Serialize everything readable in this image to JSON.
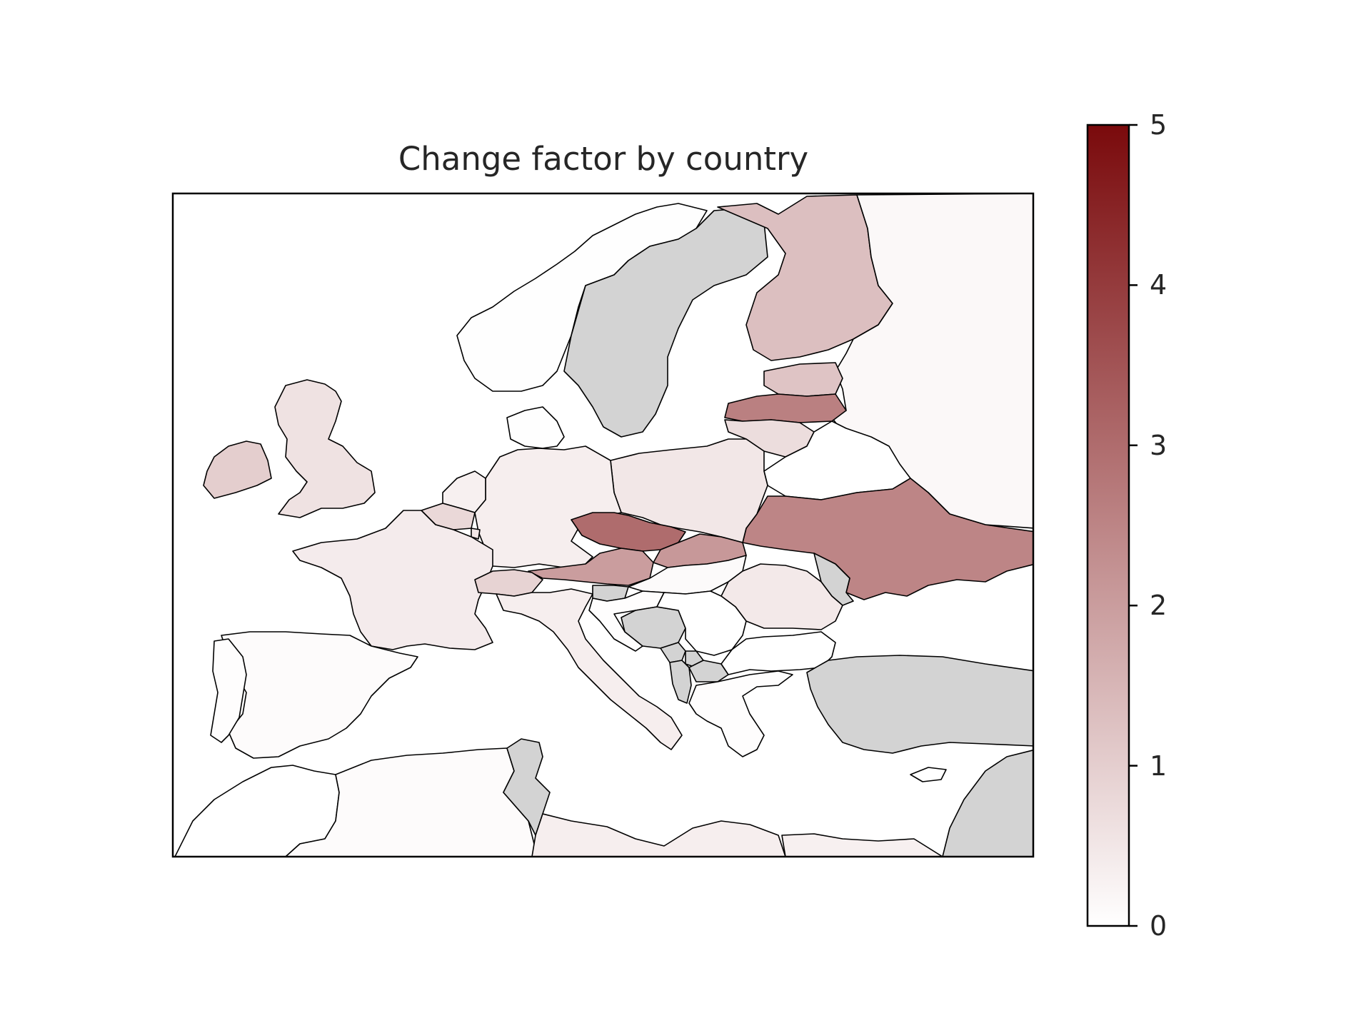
{
  "title": "Change factor by country",
  "colorbar": {
    "min": 0,
    "max": 5,
    "ticks": [
      "0",
      "1",
      "2",
      "3",
      "4",
      "5"
    ],
    "color_low": "#ffffff",
    "color_high": "#7a0a0c"
  },
  "no_data_color": "#d3d3d3",
  "countries": [
    {
      "name": "Norway",
      "value": 0.02
    },
    {
      "name": "Sweden",
      "value": null
    },
    {
      "name": "Finland",
      "value": 1.3
    },
    {
      "name": "Russia",
      "value": 0.15
    },
    {
      "name": "Estonia",
      "value": 1.2
    },
    {
      "name": "Latvia",
      "value": 2.6
    },
    {
      "name": "Lithuania",
      "value": 0.7
    },
    {
      "name": "Belarus",
      "value": 0.0
    },
    {
      "name": "Ukraine",
      "value": 2.5
    },
    {
      "name": "Moldova",
      "value": null
    },
    {
      "name": "Poland",
      "value": 0.5
    },
    {
      "name": "Germany",
      "value": 0.35
    },
    {
      "name": "Denmark",
      "value": 0.02
    },
    {
      "name": "Netherlands",
      "value": 0.3
    },
    {
      "name": "Belgium",
      "value": 0.8
    },
    {
      "name": "Luxembourg",
      "value": 0.5
    },
    {
      "name": "France",
      "value": 0.4
    },
    {
      "name": "United Kingdom",
      "value": 0.6
    },
    {
      "name": "Ireland",
      "value": 1.0
    },
    {
      "name": "Czechia",
      "value": 3.0
    },
    {
      "name": "Slovakia",
      "value": 2.1
    },
    {
      "name": "Austria",
      "value": 2.0
    },
    {
      "name": "Switzerland",
      "value": 0.9
    },
    {
      "name": "Italy",
      "value": 0.35
    },
    {
      "name": "Slovenia",
      "value": null
    },
    {
      "name": "Hungary",
      "value": 0.1
    },
    {
      "name": "Romania",
      "value": 0.45
    },
    {
      "name": "Croatia",
      "value": 0.05
    },
    {
      "name": "Bosnia and Herzegovina",
      "value": null
    },
    {
      "name": "Serbia",
      "value": 0.0
    },
    {
      "name": "Montenegro",
      "value": null
    },
    {
      "name": "Albania",
      "value": null
    },
    {
      "name": "Kosovo",
      "value": null
    },
    {
      "name": "North Macedonia",
      "value": null
    },
    {
      "name": "Bulgaria",
      "value": 0.0
    },
    {
      "name": "Greece",
      "value": 0.05
    },
    {
      "name": "Turkey",
      "value": null
    },
    {
      "name": "Spain",
      "value": 0.08
    },
    {
      "name": "Portugal",
      "value": 0.05
    },
    {
      "name": "Morocco",
      "value": 0.0
    },
    {
      "name": "Algeria",
      "value": 0.08
    },
    {
      "name": "Tunisia",
      "value": null
    },
    {
      "name": "Libya",
      "value": 0.35
    },
    {
      "name": "Egypt",
      "value": 0.3
    },
    {
      "name": "Syria",
      "value": null
    },
    {
      "name": "Cyprus",
      "value": 0.0
    }
  ]
}
